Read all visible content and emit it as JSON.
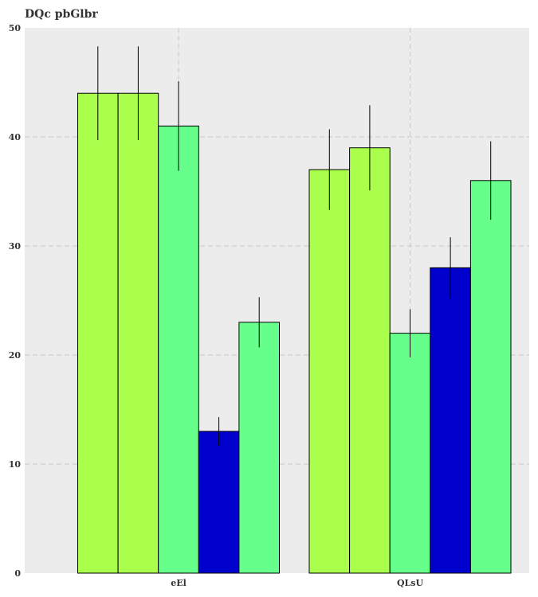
{
  "chart_data": {
    "type": "bar",
    "title": "DQc pbGlbr",
    "xlabel": "",
    "ylabel": "",
    "categories": [
      "eEl",
      "QLsU"
    ],
    "ylim": [
      0,
      50
    ],
    "yticks": [
      0,
      10,
      20,
      30,
      40,
      50
    ],
    "grid": true,
    "legend": "none",
    "background_color": "#ececec",
    "series": [
      {
        "color": "#aaff4d",
        "values": [
          44,
          37
        ],
        "errors": [
          4.3,
          3.7
        ]
      },
      {
        "color": "#aaff4d",
        "values": [
          44,
          39
        ],
        "errors": [
          4.3,
          3.9
        ]
      },
      {
        "color": "#66ff8c",
        "values": [
          41,
          22
        ],
        "errors": [
          4.1,
          2.2
        ]
      },
      {
        "color": "#0000cc",
        "values": [
          13,
          28
        ],
        "errors": [
          1.3,
          2.8
        ]
      },
      {
        "color": "#66ff8c",
        "values": [
          23,
          36
        ],
        "errors": [
          2.3,
          3.6
        ]
      }
    ]
  }
}
